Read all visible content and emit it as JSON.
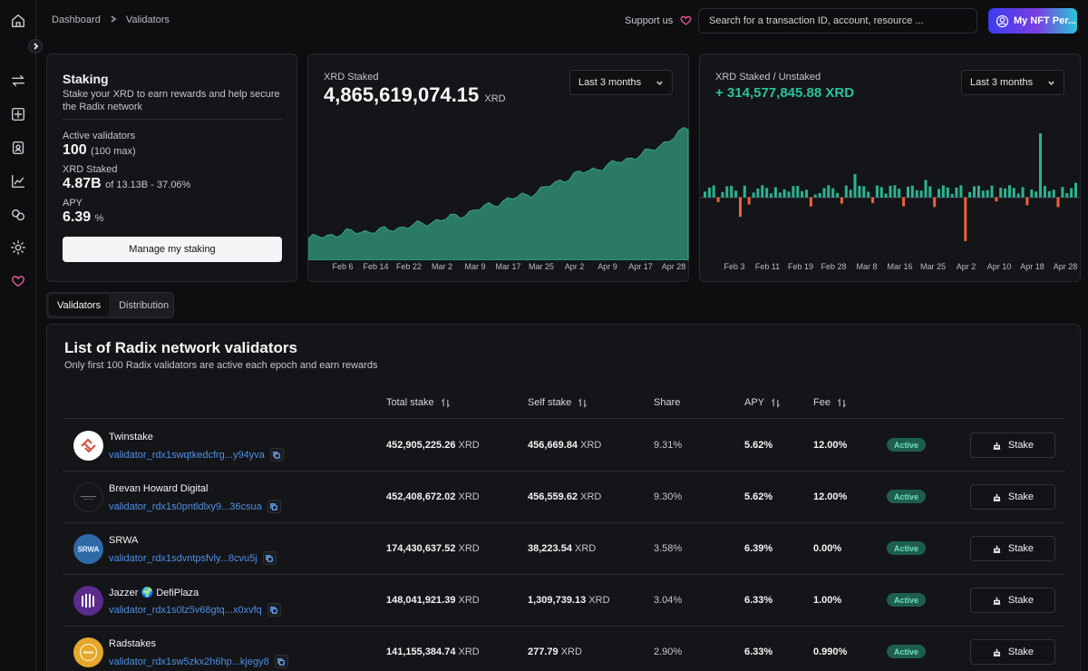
{
  "breadcrumb": {
    "home": "Dashboard",
    "current": "Validators"
  },
  "header": {
    "support_label": "Support us",
    "search_placeholder": "Search for a transaction ID, account, resource ...",
    "nft_button_label": "My NFT Per..."
  },
  "sidebar": {
    "icons": [
      "home-icon",
      "transfer-icon",
      "staking-icon",
      "contacts-icon",
      "chart-icon",
      "resources-icon",
      "settings-icon",
      "support-heart-icon"
    ]
  },
  "staking_card": {
    "title": "Staking",
    "description": "Stake your XRD to earn rewards and help secure the Radix network",
    "active_label": "Active validators",
    "active_value": "100",
    "active_sub": "(100 max)",
    "staked_label": "XRD Staked",
    "staked_value": "4.87B",
    "staked_sub": "of 13.13B - 37.06%",
    "apy_label": "APY",
    "apy_value": "6.39",
    "apy_unit": "%",
    "button_label": "Manage my staking"
  },
  "staked_chart": {
    "label": "XRD Staked",
    "value": "4,865,619,074.15",
    "unit": "XRD",
    "range_label": "Last 3 months",
    "color": "#2a7a66",
    "x_ticks": [
      "Feb 6",
      "Feb 14",
      "Feb 22",
      "Mar 2",
      "Mar 9",
      "Mar 17",
      "Mar 25",
      "Apr 2",
      "Apr 9",
      "Apr 17",
      "Apr 28"
    ]
  },
  "unstaked_chart": {
    "label": "XRD Staked / Unstaked",
    "value": "+ 314,577,845.88 XRD",
    "range_label": "Last 3 months",
    "positive_color": "#2bb393",
    "negative_color": "#f0603c",
    "x_ticks": [
      "Feb 3",
      "Feb 11",
      "Feb 19",
      "Feb 28",
      "Mar 8",
      "Mar 16",
      "Mar 25",
      "Apr 2",
      "Apr 10",
      "Apr 18",
      "Apr 28"
    ]
  },
  "chart_data": [
    {
      "type": "area",
      "title": "XRD Staked",
      "categories": [
        "Feb 6",
        "Feb 14",
        "Feb 22",
        "Mar 2",
        "Mar 9",
        "Mar 17",
        "Mar 25",
        "Apr 2",
        "Apr 9",
        "Apr 17",
        "Apr 28"
      ],
      "series": [
        {
          "values": [
            4.35,
            4.38,
            4.39,
            4.42,
            4.46,
            4.52,
            4.57,
            4.65,
            4.7,
            4.76,
            4.87
          ]
        }
      ],
      "ylim": [
        4.25,
        4.9
      ],
      "grid": false
    },
    {
      "type": "bar",
      "title": "XRD Staked / Unstaked",
      "categories": [
        "Feb 3",
        "Feb 11",
        "Feb 19",
        "Feb 28",
        "Mar 8",
        "Mar 16",
        "Mar 25",
        "Apr 2",
        "Apr 10",
        "Apr 18",
        "Apr 28"
      ],
      "series": [
        {
          "values": [
            0.6,
            -2.0,
            0.5,
            0.3,
            2.4,
            1.2,
            1.8,
            -4.5,
            1.0,
            6.6,
            1.5
          ]
        }
      ],
      "ylim": [
        -6,
        8
      ],
      "grid": false
    }
  ],
  "tabs": [
    {
      "label": "Validators",
      "active": true
    },
    {
      "label": "Distribution",
      "active": false
    }
  ],
  "list": {
    "title": "List of Radix network validators",
    "subtitle": "Only first 100 Radix validators are active each epoch and earn rewards",
    "columns": {
      "total_stake": "Total stake",
      "self_stake": "Self stake",
      "share": "Share",
      "apy": "APY",
      "fee": "Fee"
    },
    "unit": "XRD",
    "stake_label": "Stake",
    "rows": [
      {
        "name": "Twinstake",
        "address": "validator_rdx1swqtkedcfrg...y94yva",
        "total": "452,905,225.26",
        "self": "456,669.84",
        "share": "9.31%",
        "apy": "5.62%",
        "fee": "12.00%",
        "status": "Active",
        "avatar_bg": "#ffffff"
      },
      {
        "name": "Brevan Howard Digital",
        "address": "validator_rdx1s0pntldlxy9...36csua",
        "total": "452,408,672.02",
        "self": "456,559.62",
        "share": "9.30%",
        "apy": "5.62%",
        "fee": "12.00%",
        "status": "Active",
        "avatar_bg": "#141518"
      },
      {
        "name": "SRWA",
        "address": "validator_rdx1sdvntpsfvly...8cvu5j",
        "total": "174,430,637.52",
        "self": "38,223.54",
        "share": "3.58%",
        "apy": "6.39%",
        "fee": "0.00%",
        "status": "Active",
        "avatar_bg": "#2e6aa8",
        "avatar_text": "SRWA"
      },
      {
        "name": "Jazzer 🌍 DefiPlaza",
        "address": "validator_rdx1s0lz5v68gtq...x0xvfq",
        "total": "148,041,921.39",
        "self": "1,309,739.13",
        "share": "3.04%",
        "apy": "6.33%",
        "fee": "1.00%",
        "status": "Active",
        "avatar_bg": "#5a2a8c"
      },
      {
        "name": "Radstakes",
        "address": "validator_rdx1sw5zkx2h6hp...kjegy8",
        "total": "141,155,384.74",
        "self": "277.79",
        "share": "2.90%",
        "apy": "6.33%",
        "fee": "0.990%",
        "status": "Active",
        "avatar_bg": "#e5a72c"
      }
    ]
  }
}
